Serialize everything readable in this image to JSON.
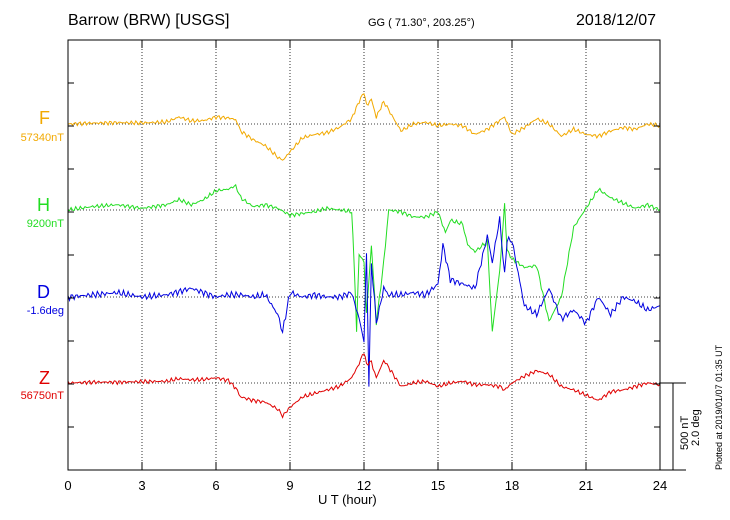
{
  "header": {
    "station": "Barrow (BRW)  [USGS]",
    "coords": "GG ( 71.30°, 203.25°)",
    "date": "2018/12/07"
  },
  "channels": [
    {
      "label": "F",
      "baseline": "57340nT",
      "color": "#f2a900"
    },
    {
      "label": "H",
      "baseline": "9200nT",
      "color": "#22dd22"
    },
    {
      "label": "D",
      "baseline": "-1.6deg",
      "color": "#0000e0"
    },
    {
      "label": "Z",
      "baseline": "56750nT",
      "color": "#e00000"
    }
  ],
  "scale": {
    "nt": "500 nT",
    "deg": "2.0 deg"
  },
  "plotted": "Plotted at 2019/01/07 01:35 UT",
  "chart_data": {
    "type": "line",
    "xlabel": "U T (hour)",
    "xlim": [
      0,
      24
    ],
    "xticks": [
      "0",
      "3",
      "6",
      "9",
      "12",
      "15",
      "18",
      "21",
      "24"
    ],
    "grid": true,
    "series": [
      {
        "name": "F",
        "unit": "nT",
        "baseline": 57340,
        "x": [
          0,
          1,
          2,
          3,
          4,
          4.5,
          5,
          5.5,
          6,
          6.5,
          6.8,
          7,
          7.5,
          8,
          8.5,
          8.7,
          9,
          9.5,
          10,
          10.5,
          11,
          11.5,
          11.8,
          12,
          12.1,
          12.3,
          12.5,
          12.8,
          13,
          13.5,
          14,
          14.5,
          15,
          15.5,
          16,
          16.5,
          17,
          17.5,
          17.7,
          18,
          18.5,
          19,
          19.5,
          20,
          20.5,
          21,
          21.5,
          22,
          22.5,
          23,
          23.5,
          24
        ],
        "y": [
          0,
          5,
          8,
          6,
          12,
          40,
          18,
          20,
          40,
          35,
          25,
          -40,
          -90,
          -125,
          -190,
          -210,
          -160,
          -80,
          -60,
          -50,
          -20,
          30,
          130,
          180,
          110,
          140,
          40,
          130,
          80,
          -40,
          0,
          10,
          -10,
          0,
          -10,
          -60,
          -30,
          20,
          40,
          -60,
          -20,
          30,
          0,
          -70,
          -30,
          -60,
          -70,
          -40,
          -20,
          -30,
          0,
          -10
        ]
      },
      {
        "name": "H",
        "unit": "nT",
        "baseline": 9200,
        "x": [
          0,
          1,
          2,
          3,
          4,
          4.5,
          5,
          5.5,
          6,
          6.5,
          6.8,
          7,
          7.5,
          8,
          8.5,
          9,
          9.5,
          10,
          10.5,
          11,
          11.5,
          11.6,
          11.7,
          11.8,
          12,
          12.1,
          12.3,
          12.5,
          12.8,
          13,
          13.5,
          14,
          14.5,
          15,
          15.3,
          15.5,
          16,
          16.2,
          16.5,
          17,
          17.2,
          17.5,
          17.7,
          17.8,
          18,
          18.5,
          19,
          19.5,
          20,
          20.5,
          21,
          21.5,
          22,
          22.5,
          23,
          23.5,
          24
        ],
        "y": [
          0,
          20,
          30,
          10,
          30,
          60,
          30,
          60,
          110,
          120,
          140,
          70,
          20,
          30,
          10,
          -30,
          -20,
          -10,
          10,
          0,
          -10,
          -300,
          -700,
          -250,
          -300,
          -600,
          -200,
          -650,
          -300,
          0,
          -10,
          -40,
          -40,
          -10,
          -130,
          -60,
          -80,
          -200,
          -240,
          -180,
          -700,
          -350,
          30,
          -230,
          -280,
          -330,
          -320,
          -640,
          -500,
          -100,
          10,
          120,
          70,
          40,
          10,
          30,
          0
        ]
      },
      {
        "name": "D",
        "unit": "deg",
        "baseline": -1.6,
        "x": [
          0,
          1,
          2,
          3,
          4,
          5,
          6,
          6.5,
          7,
          7.5,
          8,
          8.5,
          8.7,
          9,
          9.5,
          10,
          10.5,
          11,
          11.5,
          11.8,
          12,
          12.1,
          12.2,
          12.3,
          12.5,
          12.8,
          13,
          13.5,
          14,
          14.5,
          15,
          15.2,
          15.5,
          16,
          16.5,
          17,
          17.2,
          17.5,
          17.7,
          17.8,
          18,
          18.5,
          19,
          19.5,
          20,
          20.5,
          21,
          21.5,
          22,
          22.5,
          23,
          23.5,
          24
        ],
        "y": [
          0,
          0.05,
          0.1,
          0,
          0.05,
          0.2,
          0,
          0.05,
          0.05,
          0,
          0.05,
          -0.4,
          -0.8,
          0.1,
          0,
          0.05,
          0,
          0,
          0.1,
          -0.5,
          -1.0,
          1.0,
          -2.0,
          0.8,
          -0.6,
          0.2,
          0.05,
          0.05,
          0.1,
          0.05,
          0.3,
          1.2,
          0.4,
          0.3,
          0.2,
          1.4,
          0.8,
          1.8,
          0.5,
          1.3,
          1.3,
          -0.2,
          -0.4,
          0.2,
          -0.5,
          -0.3,
          -0.6,
          0,
          -0.4,
          0,
          -0.1,
          -0.3,
          -0.2
        ]
      },
      {
        "name": "Z",
        "unit": "nT",
        "baseline": 56750,
        "x": [
          0,
          1,
          2,
          3,
          4,
          4.5,
          5,
          5.5,
          6,
          6.5,
          6.8,
          7,
          7.5,
          8,
          8.5,
          8.7,
          9,
          9.5,
          10,
          10.5,
          11,
          11.5,
          11.8,
          12,
          12.1,
          12.3,
          12.5,
          12.8,
          13,
          13.5,
          14,
          14.5,
          15,
          15.5,
          16,
          16.5,
          17,
          17.5,
          17.7,
          18,
          18.5,
          19,
          19.5,
          20,
          20.5,
          21,
          21.5,
          22,
          22.5,
          23,
          23.5,
          24
        ],
        "y": [
          0,
          5,
          5,
          8,
          10,
          25,
          18,
          20,
          30,
          15,
          -30,
          -80,
          -100,
          -110,
          -150,
          -190,
          -140,
          -80,
          -60,
          -40,
          -20,
          30,
          110,
          180,
          110,
          120,
          30,
          130,
          90,
          -20,
          0,
          10,
          -20,
          0,
          10,
          -10,
          -10,
          -20,
          -40,
          0,
          40,
          70,
          50,
          -20,
          -40,
          -70,
          -100,
          -50,
          -40,
          -20,
          0,
          -10
        ]
      }
    ]
  }
}
